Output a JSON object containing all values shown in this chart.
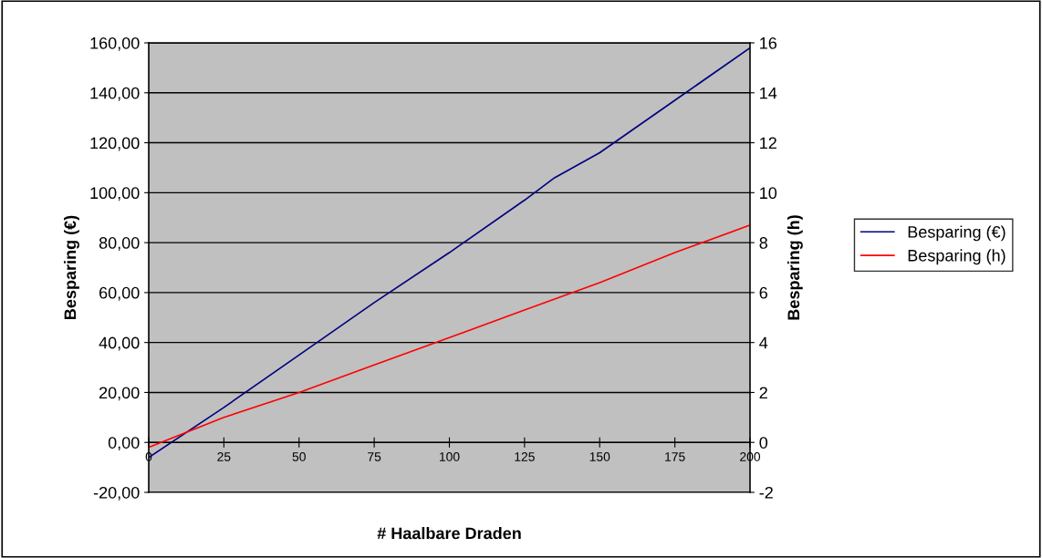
{
  "chart_data": {
    "type": "line",
    "xlabel": "# Haalbare Draden",
    "ylabel": "Besparing (€)",
    "y2label": "Besparing (h)",
    "xlim": [
      0,
      200
    ],
    "xticks": [
      0,
      25,
      50,
      75,
      100,
      125,
      150,
      175,
      200
    ],
    "ylim": [
      -20,
      160
    ],
    "yticks": [
      {
        "value": -20,
        "label": "-20,00"
      },
      {
        "value": 0,
        "label": "0,00"
      },
      {
        "value": 20,
        "label": "20,00"
      },
      {
        "value": 40,
        "label": "40,00"
      },
      {
        "value": 60,
        "label": "60,00"
      },
      {
        "value": 80,
        "label": "80,00"
      },
      {
        "value": 100,
        "label": "100,00"
      },
      {
        "value": 120,
        "label": "120,00"
      },
      {
        "value": 140,
        "label": "140,00"
      },
      {
        "value": 160,
        "label": "160,00"
      }
    ],
    "y2lim": [
      -2,
      16
    ],
    "y2ticks": [
      -2,
      0,
      2,
      4,
      6,
      8,
      10,
      12,
      14,
      16
    ],
    "grid": "y",
    "legend": "right",
    "marker": "none",
    "line_style": "solid",
    "series": [
      {
        "name": "Besparing (€)",
        "color": "#000080",
        "x": [
          0,
          25,
          50,
          75,
          100,
          125,
          135,
          150,
          175,
          200
        ],
        "values": [
          -6,
          14,
          35,
          56,
          76,
          97,
          106,
          116,
          137,
          158
        ]
      },
      {
        "name": "Besparing (h)",
        "color": "#ff0000",
        "axis": "y2",
        "x": [
          0,
          25,
          50,
          75,
          100,
          125,
          150,
          175,
          200
        ],
        "values": [
          -0.2,
          1.0,
          2.0,
          3.1,
          4.2,
          5.3,
          6.4,
          7.6,
          8.7
        ]
      }
    ]
  }
}
